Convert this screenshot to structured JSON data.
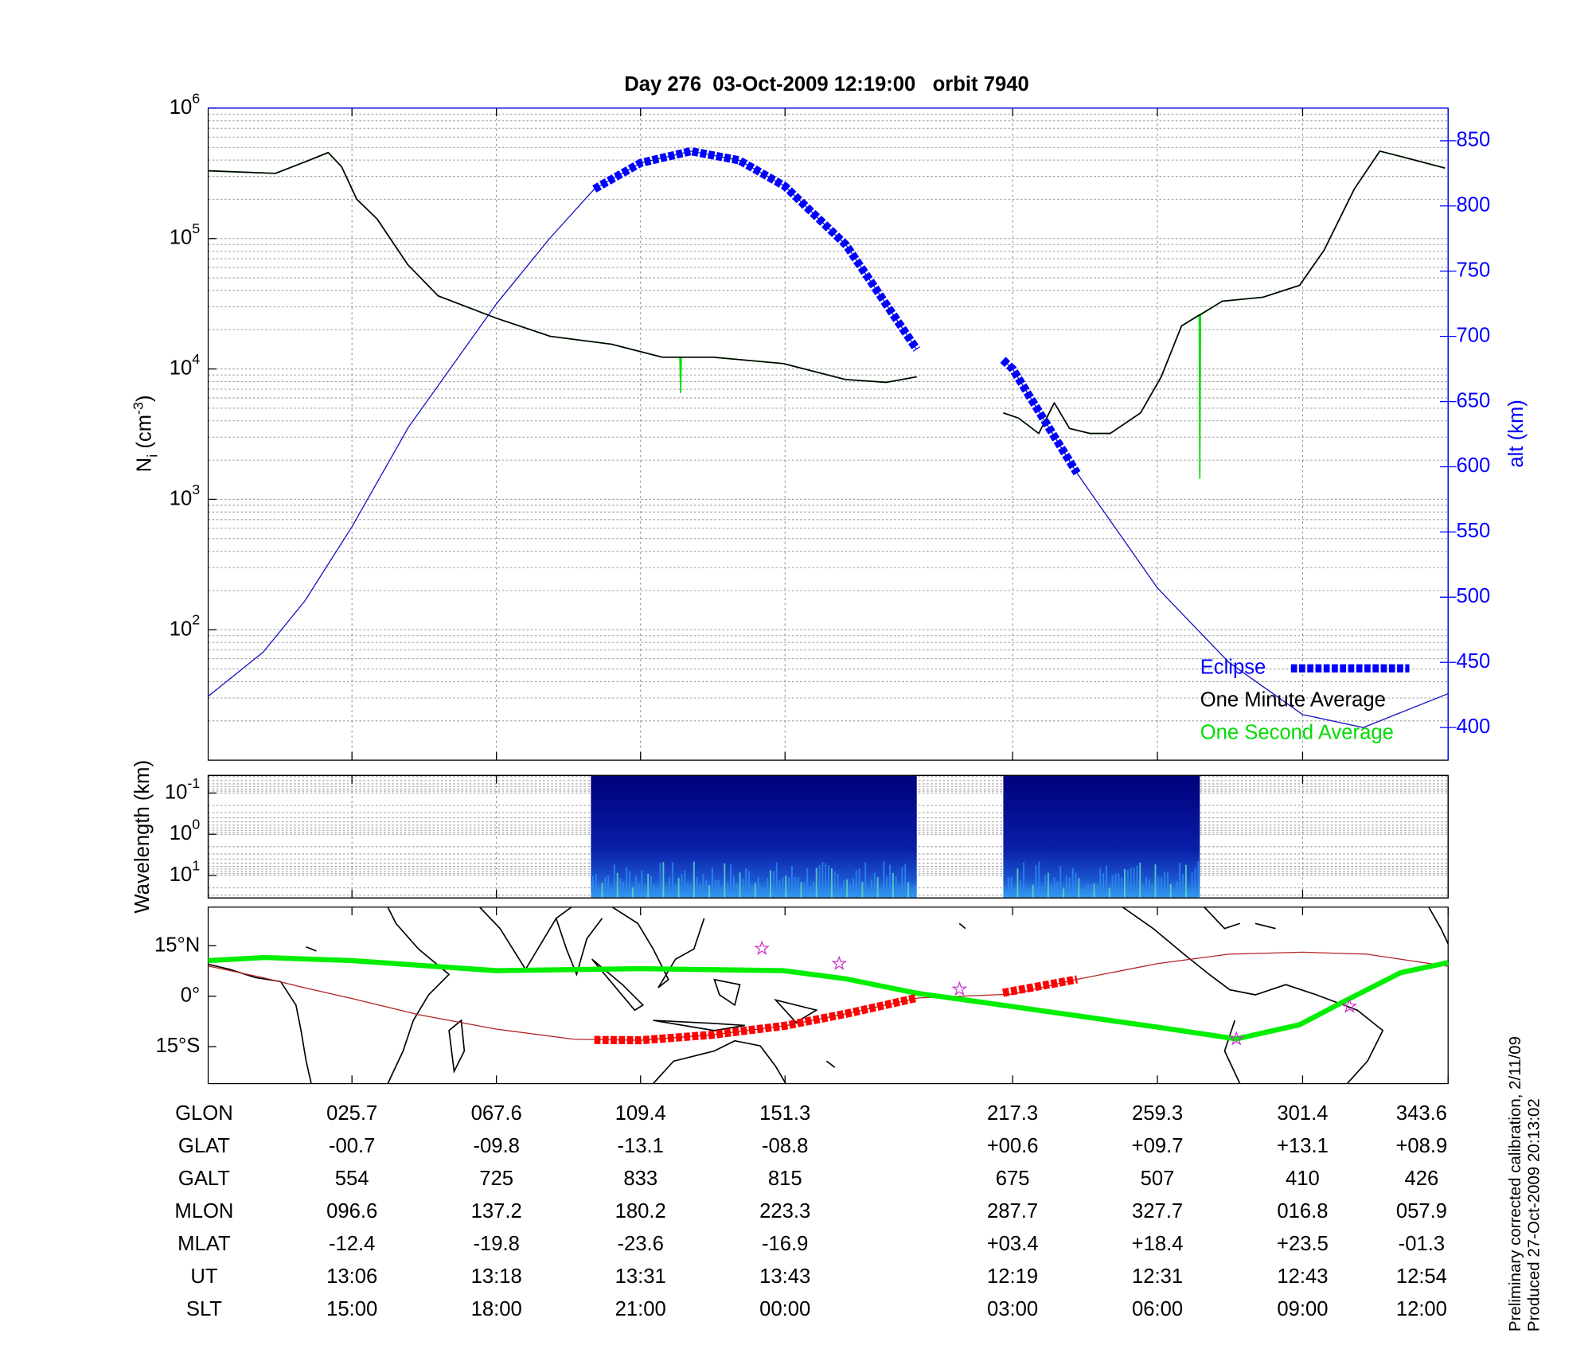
{
  "chart_data": [
    {
      "type": "line",
      "title": "Day 276  03-Oct-2009 12:19:00   orbit 7940",
      "ylabel": {
        "text": "N",
        "sub": "i",
        "unit": " (cm",
        "sup": "-3",
        "end": ")"
      },
      "y2label": "alt (km)",
      "xlim": [
        -16,
        343.6
      ],
      "xticks": [
        25.7,
        67.6,
        109.4,
        151.3,
        217.3,
        259.3,
        301.4,
        343.6
      ],
      "ylim": [
        10,
        1000000
      ],
      "yscale": "log",
      "yticks": [
        {
          "value": 100,
          "label": "10",
          "sup": "2"
        },
        {
          "value": 1000,
          "label": "10",
          "sup": "3"
        },
        {
          "value": 10000,
          "label": "10",
          "sup": "4"
        },
        {
          "value": 100000,
          "label": "10",
          "sup": "5"
        },
        {
          "value": 1000000,
          "label": "10",
          "sup": "6"
        }
      ],
      "y2lim": [
        375,
        875
      ],
      "y2ticks": [
        400,
        450,
        500,
        550,
        600,
        650,
        700,
        750,
        800,
        850
      ],
      "grid": true,
      "legend": "lower right",
      "series": [
        {
          "color": "#1010c0",
          "axis": "y2",
          "line_style": "thin",
          "x": [
            -16,
            0,
            12,
            25.7,
            42,
            67.6,
            83,
            96,
            109.4,
            124,
            138,
            151.3,
            169,
            189.5,
            200,
            214.5,
            217.3,
            236,
            259.3,
            280,
            301.4,
            319,
            343.6
          ],
          "values": [
            424,
            458,
            497,
            554,
            630,
            725,
            775,
            813,
            833,
            842,
            835,
            815,
            770,
            690,
            null,
            682,
            675,
            595,
            507,
            450,
            410,
            400,
            426
          ]
        },
        {
          "name": "Eclipse",
          "color": "#0000ff",
          "axis": "y2",
          "line_style": "thick-dashed",
          "x": [
            96,
            109.4,
            124,
            138,
            151.3,
            169,
            189.5,
            200,
            214.5,
            217.3,
            236
          ],
          "values": [
            813,
            833,
            842,
            835,
            815,
            770,
            690,
            null,
            682,
            675,
            595
          ]
        },
        {
          "name": "One Minute Average",
          "color": "#000000",
          "line_style": "normal",
          "x": [
            -16,
            3.5,
            12.3,
            18.8,
            22.7,
            27.1,
            33,
            41.9,
            50.7,
            67.6,
            83.2,
            100.9,
            115.7,
            130.4,
            150.8,
            168.8,
            180.6,
            189.5,
            200,
            214.6,
            219,
            224.9,
            229.4,
            233.8,
            239.7,
            245.6,
            254.4,
            260.4,
            266.3,
            278.1,
            289.9,
            300.5,
            307.6,
            316.4,
            323.8,
            331.2,
            342.7
          ],
          "values": [
            331000,
            316000,
            389000,
            457000,
            355000,
            200000,
            141000,
            63000,
            36300,
            24500,
            17800,
            15500,
            12300,
            12300,
            11000,
            8300,
            7900,
            8700,
            null,
            4600,
            4200,
            3200,
            5500,
            3500,
            3200,
            3200,
            4600,
            8700,
            21400,
            33100,
            35500,
            43700,
            81300,
            240000,
            468000,
            417000,
            347000
          ]
        },
        {
          "name": "One Second Average",
          "color": "#00dd00",
          "line_style": "normal",
          "x": [
            -16,
            3.5,
            12.3,
            18.8,
            22.7,
            27.1,
            33,
            41.9,
            50.7,
            67.6,
            83.2,
            100.9,
            115.7,
            120.8,
            121,
            121.2,
            130.4,
            150.8,
            168.8,
            180.6,
            189.5,
            200,
            214.6,
            219,
            224.9,
            229.4,
            233.8,
            239.7,
            245.6,
            254.4,
            260.4,
            266.3,
            271.4,
            271.6,
            271.8,
            278.1,
            289.9,
            300.5,
            307.6,
            316.4,
            323.8,
            331.2,
            342.7
          ],
          "values": [
            331000,
            316000,
            389000,
            457000,
            355000,
            200000,
            141000,
            63000,
            36300,
            24500,
            17800,
            15500,
            12300,
            12300,
            6600,
            12300,
            12300,
            11000,
            8300,
            7900,
            8700,
            null,
            4600,
            4200,
            3200,
            5500,
            3500,
            3200,
            3200,
            4600,
            8700,
            21400,
            26000,
            1450,
            26000,
            33100,
            35500,
            43700,
            81300,
            240000,
            468000,
            417000,
            347000
          ]
        }
      ]
    },
    {
      "type": "spectrogram",
      "ylabel": "Wavelength (km)",
      "xlim": [
        -16,
        343.6
      ],
      "xticks": [
        25.7,
        67.6,
        109.4,
        151.3,
        217.3,
        259.3,
        301.4,
        343.6
      ],
      "ylim": [
        0.0375,
        35
      ],
      "yscale": "log",
      "inverted": true,
      "yticks": [
        {
          "value": 0.1,
          "label": "10",
          "sup": "-1"
        },
        {
          "value": 1,
          "label": "10",
          "sup": "0"
        },
        {
          "value": 10,
          "label": "10",
          "sup": "1"
        }
      ],
      "grid": true,
      "x_ranges": [
        [
          95.0,
          189.5
        ],
        [
          214.6,
          271.6
        ]
      ]
    },
    {
      "type": "map",
      "xlim": [
        -16,
        343.6
      ],
      "xticks": [
        25.7,
        67.6,
        109.4,
        151.3,
        217.3,
        259.3,
        301.4,
        343.6
      ],
      "ylim": [
        -26,
        26.5
      ],
      "yticks": [
        {
          "value": 15,
          "label": "15°N"
        },
        {
          "value": 0,
          "label": "0°"
        },
        {
          "value": -15,
          "label": "15°S"
        }
      ],
      "series": [
        {
          "color": "#b22222",
          "line_style": "thin",
          "x": [
            -16,
            0,
            12,
            25.7,
            45,
            67.6,
            90,
            109.4,
            130,
            151.3,
            170,
            190,
            217.3,
            236,
            259.3,
            280,
            301.4,
            320,
            343.6
          ],
          "values": [
            9,
            5.5,
            2.5,
            -0.7,
            -5.5,
            -9.8,
            -12.8,
            -13.1,
            -11.5,
            -8.8,
            -5,
            -0.5,
            0.6,
            5,
            9.7,
            12.5,
            13.1,
            12.5,
            8.9
          ]
        },
        {
          "color": "#00ee00",
          "line_style": "thick",
          "x": [
            -16,
            0.5,
            25.6,
            67.6,
            109.2,
            150.8,
            168.8,
            189.5,
            216.7,
            258.6,
            282.2,
            300.5,
            313.5,
            329.8,
            343.6
          ],
          "values": [
            10.6,
            11.5,
            10.6,
            7.6,
            8.2,
            7.6,
            5.2,
            0.9,
            -3,
            -9.1,
            -12.7,
            -8.5,
            -1.5,
            7,
            10
          ]
        },
        {
          "color": "#ff0000",
          "line_style": "thick-dashed",
          "x": [
            96,
            109.4,
            130,
            151.3,
            170,
            189.5,
            200,
            214.5,
            236
          ],
          "values": [
            -13,
            -13.1,
            -11.5,
            -8.8,
            -5,
            -0.5,
            null,
            1,
            5
          ]
        },
        {
          "color": "#cc33cc",
          "line_style": "star",
          "x": [
            144.6,
            167,
            201.9,
            282.2,
            315
          ],
          "values": [
            14.2,
            9.7,
            2.1,
            -12.7,
            -3
          ]
        }
      ]
    }
  ],
  "table": {
    "rows": [
      {
        "label": "GLON",
        "values": [
          "025.7",
          "067.6",
          "109.4",
          "151.3",
          "217.3",
          "259.3",
          "301.4",
          "343.6"
        ]
      },
      {
        "label": "GLAT",
        "values": [
          "-00.7",
          "-09.8",
          "-13.1",
          "-08.8",
          "+00.6",
          "+09.7",
          "+13.1",
          "+08.9"
        ]
      },
      {
        "label": "GALT",
        "values": [
          "554",
          "725",
          "833",
          "815",
          "675",
          "507",
          "410",
          "426"
        ]
      },
      {
        "label": "MLON",
        "values": [
          "096.6",
          "137.2",
          "180.2",
          "223.3",
          "287.7",
          "327.7",
          "016.8",
          "057.9"
        ]
      },
      {
        "label": "MLAT",
        "values": [
          "-12.4",
          "-19.8",
          "-23.6",
          "-16.9",
          "+03.4",
          "+18.4",
          "+23.5",
          "-01.3"
        ]
      },
      {
        "label": "UT",
        "values": [
          "13:06",
          "13:18",
          "13:31",
          "13:43",
          "12:19",
          "12:31",
          "12:43",
          "12:54"
        ]
      },
      {
        "label": "SLT",
        "values": [
          "15:00",
          "18:00",
          "21:00",
          "00:00",
          "03:00",
          "06:00",
          "09:00",
          "12:00"
        ]
      }
    ]
  },
  "footer": [
    "Preliminary corrected calibration, 2/11/09",
    "Produced 27-Oct-2009 20:13:02"
  ]
}
